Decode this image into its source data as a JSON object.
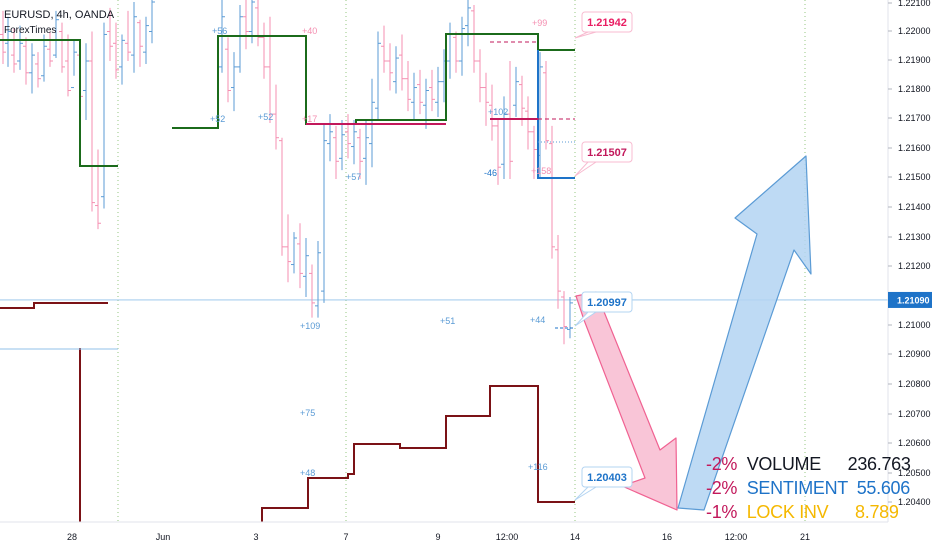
{
  "header": {
    "symbol": "EURUSD, 4h, OANDA",
    "source": "ForexTimes"
  },
  "price_axis": {
    "ticks": [
      "1.22100",
      "1.22000",
      "1.21900",
      "1.21800",
      "1.21700",
      "1.21600",
      "1.21500",
      "1.21400",
      "1.21300",
      "1.21200",
      "1.21000",
      "1.20900",
      "1.20800",
      "1.20700",
      "1.20600",
      "1.20500",
      "1.20400"
    ],
    "current_price": "1.21090"
  },
  "time_axis": {
    "ticks": [
      "28",
      "Jun",
      "3",
      "7",
      "9",
      "12:00",
      "14",
      "16",
      "12:00",
      "21"
    ]
  },
  "callouts": [
    {
      "label": "1.21942",
      "color": "#e91e63"
    },
    {
      "label": "1.21507",
      "color": "#c2185b"
    },
    {
      "label": "1.20997",
      "color": "#1e73c8"
    },
    {
      "label": "1.20403",
      "color": "#1e73c8"
    }
  ],
  "annotations": [
    {
      "text": "+56",
      "color": "#5b9bd5"
    },
    {
      "text": "+40",
      "color": "#f48fb1"
    },
    {
      "text": "+52",
      "color": "#5b9bd5"
    },
    {
      "text": "+52",
      "color": "#5b9bd5"
    },
    {
      "text": "+17",
      "color": "#f48fb1"
    },
    {
      "text": "+57",
      "color": "#5b9bd5"
    },
    {
      "text": "+99",
      "color": "#f48fb1"
    },
    {
      "text": "+102",
      "color": "#5b9bd5"
    },
    {
      "text": "-46",
      "color": "#1e73c8"
    },
    {
      "text": "+158",
      "color": "#f48fb1"
    },
    {
      "text": "+109",
      "color": "#5b9bd5"
    },
    {
      "text": "+51",
      "color": "#5b9bd5"
    },
    {
      "text": "+44",
      "color": "#5b9bd5"
    },
    {
      "text": "+75",
      "color": "#5b9bd5"
    },
    {
      "text": "+48",
      "color": "#5b9bd5"
    },
    {
      "text": "+116",
      "color": "#5b9bd5"
    }
  ],
  "stats": [
    {
      "pct": "-2%",
      "name": "VOLUME",
      "value": "236.763",
      "name_color": "#131722",
      "value_color": "#131722"
    },
    {
      "pct": "-2%",
      "name": "SENTIMENT",
      "value": "55.606",
      "name_color": "#1e73c8",
      "value_color": "#1e73c8"
    },
    {
      "pct": "-1%",
      "name": "LOCK INV",
      "value": "8.789",
      "name_color": "#f5b800",
      "value_color": "#f5b800"
    }
  ],
  "colors": {
    "bull": "#5b9bd5",
    "bear": "#f48fb1",
    "green_line": "#1b6b1b",
    "dark_red_line": "#7b1216",
    "magenta_line": "#c2185b",
    "arrow_pink": "#f8bbd0",
    "arrow_blue": "#b3d4f2"
  },
  "chart_data": {
    "type": "line",
    "title": "EURUSD, 4h, OANDA",
    "xlabel": "",
    "ylabel": "",
    "ylim": [
      1.2034,
      1.2215
    ],
    "x_ticks": [
      "28",
      "Jun",
      "3",
      "7",
      "9",
      "12:00",
      "14",
      "16",
      "12:00",
      "21"
    ],
    "current_price": 1.2109,
    "series": [],
    "price_levels": [
      1.21942,
      1.21507,
      1.20997,
      1.20403
    ],
    "projection": {
      "down_from": 1.20997,
      "down_to": 1.2038,
      "up_to": 1.2157
    }
  }
}
